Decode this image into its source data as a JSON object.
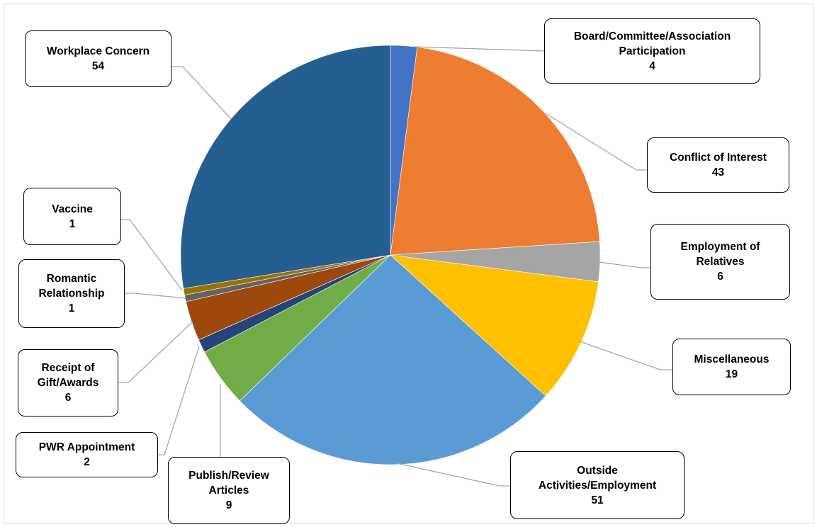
{
  "chart_data": {
    "type": "pie",
    "title": "",
    "start_angle_deg": 0,
    "direction": "clockwise",
    "slices": [
      {
        "label": "Board/Committee/Association Participation",
        "value": 4,
        "color": "#4472c4"
      },
      {
        "label": "Conflict of Interest",
        "value": 43,
        "color": "#ed7d31"
      },
      {
        "label": "Employment of Relatives",
        "value": 6,
        "color": "#a5a5a5"
      },
      {
        "label": "Miscellaneous",
        "value": 19,
        "color": "#ffc000"
      },
      {
        "label": "Outside Activities/Employment",
        "value": 51,
        "color": "#5b9bd5"
      },
      {
        "label": "Publish/Review Articles",
        "value": 9,
        "color": "#70ad47"
      },
      {
        "label": "PWR Appointment",
        "value": 2,
        "color": "#264478"
      },
      {
        "label": "Receipt of Gift/Awards",
        "value": 6,
        "color": "#9e480e"
      },
      {
        "label": "Romantic Relationship",
        "value": 1,
        "color": "#636363"
      },
      {
        "label": "Vaccine",
        "value": 1,
        "color": "#997300"
      },
      {
        "label": "Workplace Concern",
        "value": 54,
        "color": "#255e91"
      }
    ]
  },
  "labels": {
    "board": {
      "text": "Board/Committee/Association\nParticipation",
      "value": "4"
    },
    "conflict": {
      "text": "Conflict of Interest",
      "value": "43"
    },
    "relatives": {
      "text": "Employment of\nRelatives",
      "value": "6"
    },
    "misc": {
      "text": "Miscellaneous",
      "value": "19"
    },
    "outside": {
      "text": "Outside\nActivities/Employment",
      "value": "51"
    },
    "publish": {
      "text": "Publish/Review\nArticles",
      "value": "9"
    },
    "pwr": {
      "text": "PWR Appointment",
      "value": "2"
    },
    "gift": {
      "text": "Receipt of\nGift/Awards",
      "value": "6"
    },
    "romantic": {
      "text": "Romantic\nRelationship",
      "value": "1"
    },
    "vaccine": {
      "text": "Vaccine",
      "value": "1"
    },
    "workplace": {
      "text": "Workplace Concern",
      "value": "54"
    }
  },
  "colors": {
    "leader_line": "#a6a6a6",
    "callout_border": "#000000"
  }
}
